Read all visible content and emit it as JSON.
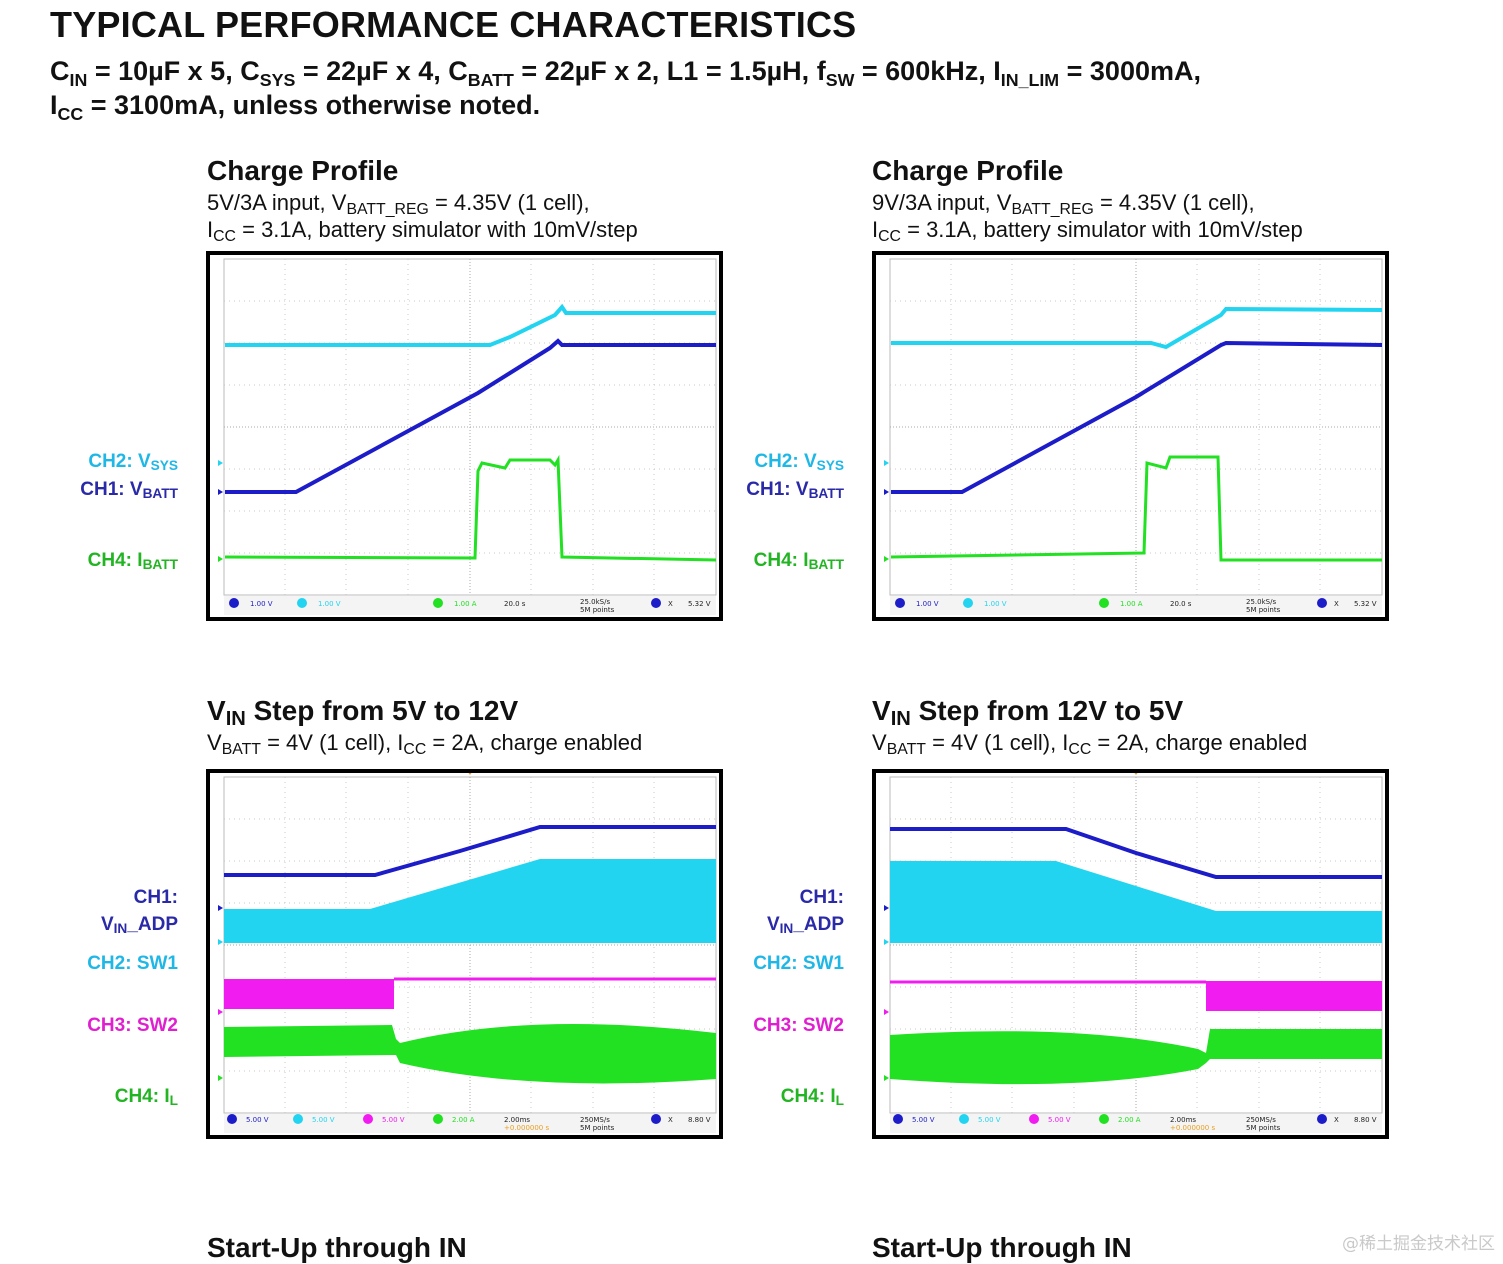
{
  "page": {
    "heading": "TYPICAL PERFORMANCE CHARACTERISTICS",
    "conditions": {
      "cin": {
        "sym": "C",
        "sub": "IN",
        "val": " = 10µF x 5, "
      },
      "csys": {
        "sym": "C",
        "sub": "SYS",
        "val": " = 22µF x 4, "
      },
      "cbatt": {
        "sym": "C",
        "sub": "BATT",
        "val": " = 22µF x 2, L1 = 1.5µH, "
      },
      "fsw": {
        "sym": "f",
        "sub": "SW",
        "val": " = 600kHz, "
      },
      "ilim": {
        "sym": "I",
        "sub": "IN_LIM",
        "val": " = 3000mA,"
      },
      "icc": {
        "sym": "I",
        "sub": "CC",
        "val": " = 3100mA, unless otherwise noted."
      }
    },
    "watermark": "@稀土掘金技术社区"
  },
  "plots": [
    {
      "title": "Charge Profile",
      "desc1": {
        "a": "5V/3A input, V",
        "sub": "BATT_REG",
        "b": " = 4.35V (1 cell),"
      },
      "desc2": {
        "a": "I",
        "sub": "CC",
        "b": " = 3.1A, battery simulator with 10mV/step"
      },
      "labels": [
        {
          "a": "CH2: V",
          "sub": "SYS",
          "color": "#1fb7e6"
        },
        {
          "a": "CH1: V",
          "sub": "BATT",
          "color": "#2a2aa8"
        },
        {
          "a": "CH4: I",
          "sub": "BATT",
          "color": "#22b422"
        }
      ],
      "scope_status": {
        "ch1": "1.00 V",
        "ch2": "1.00 V",
        "ch4": "1.00 A",
        "time": "20.0 s",
        "rate": "25.0kS/s",
        "points": "5M points",
        "trig": "5.32 V"
      }
    },
    {
      "title": "Charge Profile",
      "desc1": {
        "a": "9V/3A input, V",
        "sub": "BATT_REG",
        "b": " = 4.35V (1 cell),"
      },
      "desc2": {
        "a": "I",
        "sub": "CC",
        "b": " = 3.1A, battery simulator with 10mV/step"
      },
      "labels": [
        {
          "a": "CH2: V",
          "sub": "SYS",
          "color": "#1fb7e6"
        },
        {
          "a": "CH1: V",
          "sub": "BATT",
          "color": "#2a2aa8"
        },
        {
          "a": "CH4: I",
          "sub": "BATT",
          "color": "#22b422"
        }
      ],
      "scope_status": {
        "ch1": "1.00 V",
        "ch2": "1.00 V",
        "ch4": "1.00 A",
        "time": "20.0 s",
        "rate": "25.0kS/s",
        "points": "5M points",
        "trig": "5.32 V"
      }
    },
    {
      "title": {
        "a": "V",
        "sub": "IN",
        "b": " Step from 5V to 12V"
      },
      "desc1": {
        "a": "V",
        "sub": "BATT",
        "b": " = 4V (1 cell), I",
        "sub2": "CC",
        "c": " = 2A, charge enabled"
      },
      "labels": [
        {
          "a": "CH1:",
          "color": "#2a2aa8"
        },
        {
          "a": "V",
          "sub": "IN",
          "b": "_ADP",
          "color": "#2a2aa8"
        },
        {
          "a": "CH2: SW1",
          "color": "#1fb7e6"
        },
        {
          "a": "CH3: SW2",
          "color": "#e01fd0"
        },
        {
          "a": "CH4: I",
          "sub": "L",
          "color": "#22b422"
        }
      ],
      "scope_status": {
        "ch1": "5.00 V",
        "ch2": "5.00 V",
        "ch3": "5.00 V",
        "ch4": "2.00 A",
        "time": "2.00ms",
        "offset": "+0.000000 s",
        "rate": "250MS/s",
        "points": "5M points",
        "trig": "8.80 V"
      }
    },
    {
      "title": {
        "a": "V",
        "sub": "IN",
        "b": " Step from 12V to 5V"
      },
      "desc1": {
        "a": "V",
        "sub": "BATT",
        "b": " = 4V (1 cell), I",
        "sub2": "CC",
        "c": " = 2A, charge enabled"
      },
      "labels": [
        {
          "a": "CH1:",
          "color": "#2a2aa8"
        },
        {
          "a": "V",
          "sub": "IN",
          "b": "_ADP",
          "color": "#2a2aa8"
        },
        {
          "a": "CH2: SW1",
          "color": "#1fb7e6"
        },
        {
          "a": "CH3: SW2",
          "color": "#e01fd0"
        },
        {
          "a": "CH4: I",
          "sub": "L",
          "color": "#22b422"
        }
      ],
      "scope_status": {
        "ch1": "5.00 V",
        "ch2": "5.00 V",
        "ch3": "5.00 V",
        "ch4": "2.00 A",
        "time": "2.00ms",
        "offset": "+0.000000 s",
        "rate": "250MS/s",
        "points": "5M points",
        "trig": "8.80 V"
      }
    },
    {
      "title": "Start-Up through IN"
    },
    {
      "title": "Start-Up through IN"
    }
  ],
  "colors": {
    "ch1": "#1c1cc8",
    "ch2": "#22d4f0",
    "ch3": "#f01cf0",
    "ch4": "#22e022"
  }
}
